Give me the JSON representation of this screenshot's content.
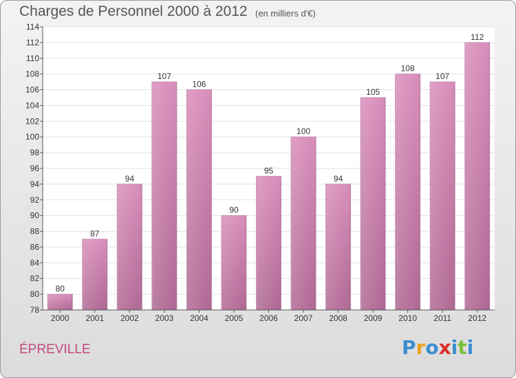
{
  "title": "Charges de Personnel 2000 à 2012",
  "subtitle": "(en milliers d'€)",
  "commune": "ÉPREVILLE",
  "logo": {
    "letters": [
      "P",
      "r",
      "o",
      "x",
      "i",
      "t",
      "i"
    ],
    "colors": [
      "#3b8ed0",
      "#e8a21c",
      "#3b8ed0",
      "#d9302c",
      "#3b8ed0",
      "#7bbf3a",
      "#3b8ed0"
    ]
  },
  "chart_data": {
    "type": "bar",
    "title": "Charges de Personnel 2000 à 2012",
    "subtitle": "(en milliers d'€)",
    "categories": [
      "2000",
      "2001",
      "2002",
      "2003",
      "2004",
      "2005",
      "2006",
      "2007",
      "2008",
      "2009",
      "2010",
      "2011",
      "2012"
    ],
    "values": [
      80,
      87,
      94,
      107,
      106,
      90,
      95,
      100,
      94,
      105,
      108,
      107,
      112
    ],
    "ylim": [
      78,
      114
    ],
    "yticks": [
      78,
      80,
      82,
      84,
      86,
      88,
      90,
      92,
      94,
      96,
      98,
      100,
      102,
      104,
      106,
      108,
      110,
      112,
      114
    ],
    "grid": true,
    "bar_color": "#d98fbb",
    "bar_color_bottom": "#b06a95"
  }
}
